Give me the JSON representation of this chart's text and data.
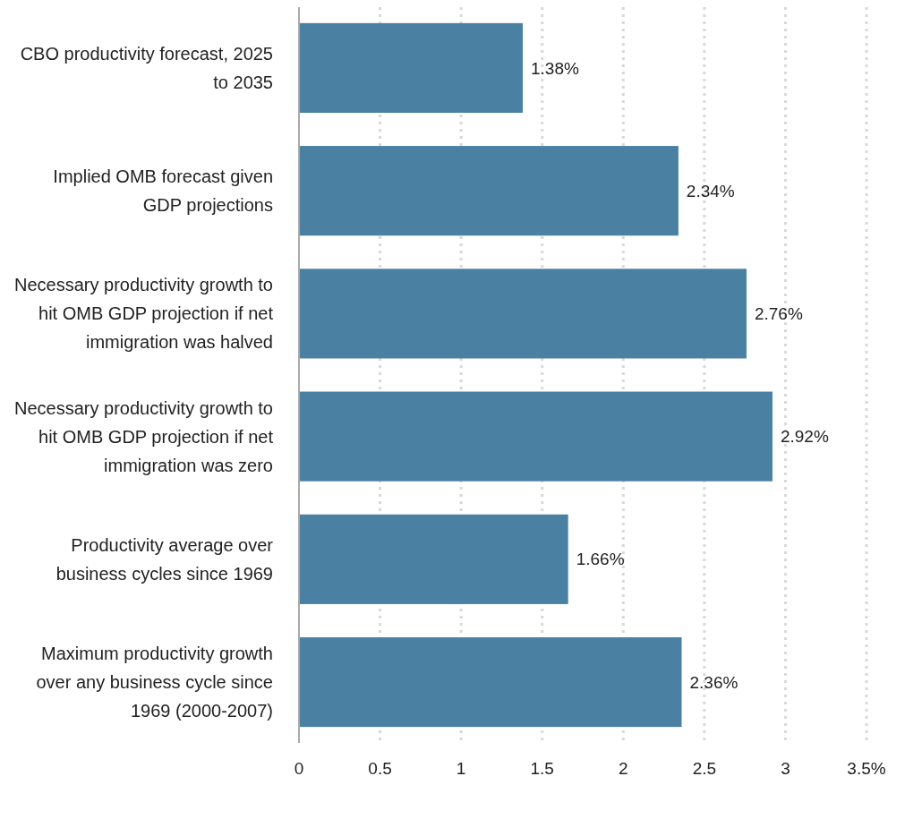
{
  "chart_data": {
    "type": "bar",
    "orientation": "horizontal",
    "categories": [
      "CBO productivity forecast, 2025 to 2035",
      "Implied OMB forecast given GDP projections",
      "Necessary productivity growth to hit OMB GDP projection if net immigration was halved",
      "Necessary productivity growth to hit OMB GDP projection if net immigration was zero",
      "Productivity average over business cycles since 1969",
      "Maximum productivity growth over any business cycle since 1969 (2000-2007)"
    ],
    "values": [
      1.38,
      2.34,
      2.76,
      2.92,
      1.66,
      2.36
    ],
    "value_labels": [
      "1.38%",
      "2.34%",
      "2.76%",
      "2.92%",
      "1.66%",
      "2.36%"
    ],
    "color": "#4a80a2",
    "xlim": [
      0,
      3.5
    ],
    "xticks": [
      0,
      0.5,
      1,
      1.5,
      2,
      2.5,
      3,
      {
        "value": 3.5,
        "label": "3.5%"
      }
    ],
    "grid": "x"
  }
}
